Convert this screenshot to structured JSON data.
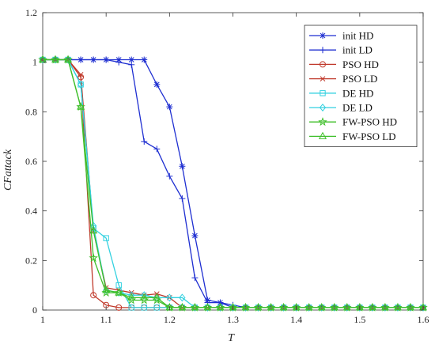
{
  "chart_data": {
    "type": "line",
    "xlabel": "T",
    "ylabel": "CFattack",
    "xlim": [
      1,
      1.6
    ],
    "ylim": [
      0,
      1.2
    ],
    "xticks": [
      "1",
      "1.1",
      "1.2",
      "1.3",
      "1.4",
      "1.5",
      "1.6"
    ],
    "yticks": [
      "0",
      "0.2",
      "0.4",
      "0.6",
      "0.8",
      "1",
      "1.2"
    ],
    "grid": false,
    "legend_position": "top-right",
    "x": [
      1.0,
      1.02,
      1.04,
      1.06,
      1.08,
      1.1,
      1.12,
      1.14,
      1.16,
      1.18,
      1.2,
      1.22,
      1.24,
      1.26,
      1.28,
      1.3,
      1.32,
      1.34,
      1.36,
      1.38,
      1.4,
      1.42,
      1.44,
      1.46,
      1.48,
      1.5,
      1.52,
      1.54,
      1.56,
      1.58,
      1.6
    ],
    "series": [
      {
        "name": "init HD",
        "color": "#1f2fd1",
        "marker": "asterisk",
        "values": [
          1.01,
          1.01,
          1.01,
          1.01,
          1.01,
          1.01,
          1.01,
          1.01,
          1.01,
          0.91,
          0.82,
          0.58,
          0.3,
          0.04,
          0.03,
          0.01,
          0.01,
          0.01,
          0.01,
          0.01,
          0.01,
          0.01,
          0.01,
          0.01,
          0.01,
          0.01,
          0.01,
          0.01,
          0.01,
          0.01,
          0.01
        ]
      },
      {
        "name": "init LD",
        "color": "#1f2fd1",
        "marker": "plus",
        "values": [
          1.01,
          1.01,
          1.01,
          1.01,
          1.01,
          1.01,
          1.0,
          0.99,
          0.68,
          0.65,
          0.54,
          0.45,
          0.13,
          0.03,
          0.03,
          0.02,
          0.01,
          0.01,
          0.01,
          0.01,
          0.01,
          0.01,
          0.01,
          0.01,
          0.01,
          0.01,
          0.01,
          0.01,
          0.01,
          0.01,
          0.01
        ]
      },
      {
        "name": "PSO HD",
        "color": "#c0392b",
        "marker": "circle",
        "values": [
          1.01,
          1.01,
          1.01,
          0.94,
          0.06,
          0.02,
          0.01,
          0.01,
          0.01,
          0.01,
          0.01,
          0.01,
          0.01,
          0.01,
          0.01,
          0.01,
          0.01,
          0.01,
          0.01,
          0.01,
          0.01,
          0.01,
          0.01,
          0.01,
          0.01,
          0.01,
          0.01,
          0.01,
          0.01,
          0.01,
          0.01
        ]
      },
      {
        "name": "PSO LD",
        "color": "#c0392b",
        "marker": "x",
        "values": [
          1.01,
          1.01,
          1.01,
          0.95,
          0.32,
          0.09,
          0.08,
          0.07,
          0.06,
          0.065,
          0.05,
          0.01,
          0.01,
          0.01,
          0.01,
          0.01,
          0.01,
          0.01,
          0.01,
          0.01,
          0.01,
          0.01,
          0.01,
          0.01,
          0.01,
          0.01,
          0.01,
          0.01,
          0.01,
          0.01,
          0.01
        ]
      },
      {
        "name": "DE HD",
        "color": "#33d1e0",
        "marker": "square",
        "values": [
          1.01,
          1.01,
          1.01,
          0.91,
          0.33,
          0.29,
          0.1,
          0.01,
          0.01,
          0.01,
          0.01,
          0.01,
          0.01,
          0.01,
          0.01,
          0.01,
          0.01,
          0.01,
          0.01,
          0.01,
          0.01,
          0.01,
          0.01,
          0.01,
          0.01,
          0.01,
          0.01,
          0.01,
          0.01,
          0.01,
          0.01
        ]
      },
      {
        "name": "DE LD",
        "color": "#33d1e0",
        "marker": "diamond",
        "values": [
          1.01,
          1.01,
          1.01,
          0.91,
          0.34,
          0.08,
          0.07,
          0.06,
          0.06,
          0.05,
          0.05,
          0.05,
          0.01,
          0.01,
          0.01,
          0.01,
          0.01,
          0.01,
          0.01,
          0.01,
          0.01,
          0.01,
          0.01,
          0.01,
          0.01,
          0.01,
          0.01,
          0.01,
          0.01,
          0.01,
          0.01
        ]
      },
      {
        "name": "FW-PSO HD",
        "color": "#3fbf2a",
        "marker": "star",
        "values": [
          1.01,
          1.01,
          1.01,
          0.82,
          0.21,
          0.07,
          0.07,
          0.04,
          0.04,
          0.04,
          0.01,
          0.01,
          0.01,
          0.01,
          0.01,
          0.01,
          0.01,
          0.01,
          0.01,
          0.01,
          0.01,
          0.01,
          0.01,
          0.01,
          0.01,
          0.01,
          0.01,
          0.01,
          0.01,
          0.01,
          0.01
        ]
      },
      {
        "name": "FW-PSO LD",
        "color": "#3fbf2a",
        "marker": "triangle",
        "values": [
          1.01,
          1.01,
          1.01,
          0.82,
          0.32,
          0.08,
          0.07,
          0.05,
          0.05,
          0.05,
          0.01,
          0.01,
          0.01,
          0.01,
          0.01,
          0.01,
          0.01,
          0.01,
          0.01,
          0.01,
          0.01,
          0.01,
          0.01,
          0.01,
          0.01,
          0.01,
          0.01,
          0.01,
          0.01,
          0.01,
          0.01
        ]
      }
    ]
  }
}
